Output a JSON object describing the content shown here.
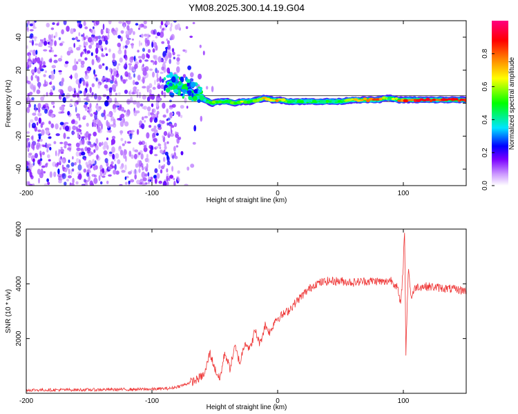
{
  "chart_data": [
    {
      "type": "heatmap",
      "title": "YM08.2025.300.14.19.G04",
      "xlabel": "Height of straight line (km)",
      "ylabel": "Frequency (Hz)",
      "xlim": [
        -200,
        150
      ],
      "ylim": [
        -50,
        50
      ],
      "xticks": [
        -200,
        -100,
        0,
        100
      ],
      "yticks": [
        -40,
        -20,
        0,
        20,
        40
      ],
      "colorbar": {
        "label": "Normalized spectral amplitude",
        "range": [
          0.0,
          1.0
        ],
        "ticks": [
          0.0,
          0.2,
          0.4,
          0.6,
          0.8
        ],
        "colors": [
          "#ffffff",
          "#cc99ff",
          "#7a00ff",
          "#0000ff",
          "#00e5ff",
          "#00ff00",
          "#ffff00",
          "#ff8000",
          "#ff0000",
          "#ff0080"
        ]
      },
      "noise_region": {
        "x_range": [
          -200,
          -85
        ],
        "amplitude": [
          0.05,
          0.25
        ]
      },
      "signal_ridge": {
        "x": [
          -88,
          -82,
          -76,
          -70,
          -64,
          -58,
          -52,
          -46,
          -40,
          -34,
          -28,
          -22,
          -16,
          -10,
          -4,
          0,
          10,
          20,
          30,
          40,
          50,
          60,
          70,
          80,
          86,
          90,
          96,
          100,
          110,
          120,
          130,
          150
        ],
        "freq": [
          11,
          11,
          10,
          8,
          5,
          2,
          0,
          1,
          1,
          0,
          1,
          1,
          2,
          3,
          2,
          2,
          1,
          1,
          1,
          1,
          1,
          2,
          2,
          2,
          3,
          3,
          2,
          2,
          2,
          2,
          2,
          2
        ],
        "amplitude": [
          0.3,
          0.45,
          0.5,
          0.45,
          0.4,
          0.4,
          0.5,
          0.55,
          0.5,
          0.55,
          0.6,
          0.55,
          0.6,
          0.7,
          0.65,
          0.75,
          0.5,
          0.45,
          0.45,
          0.45,
          0.45,
          0.6,
          0.8,
          0.8,
          0.55,
          0.5,
          0.75,
          0.8,
          0.85,
          0.85,
          0.85,
          0.85
        ]
      },
      "horizontal_lines_hz": [
        1.0,
        4.5
      ]
    },
    {
      "type": "line",
      "xlabel": "Height of straight line (km)",
      "ylabel": "SNR (10 * v/v)",
      "xlim": [
        -200,
        150
      ],
      "ylim": [
        0,
        6000
      ],
      "xticks": [
        -200,
        -100,
        0,
        100
      ],
      "yticks": [
        2000,
        4000,
        6000
      ],
      "series": [
        {
          "name": "SNR",
          "color": "#ee3333",
          "x": [
            -200,
            -150,
            -100,
            -85,
            -75,
            -65,
            -58,
            -54,
            -50,
            -46,
            -42,
            -38,
            -34,
            -30,
            -26,
            -22,
            -18,
            -14,
            -10,
            -6,
            -2,
            2,
            8,
            14,
            20,
            26,
            30,
            40,
            50,
            60,
            70,
            80,
            85,
            90,
            95,
            98,
            100,
            101,
            102,
            104,
            106,
            110,
            120,
            130,
            140,
            150
          ],
          "y": [
            120,
            130,
            150,
            180,
            300,
            480,
            700,
            1500,
            900,
            500,
            1500,
            900,
            1700,
            1100,
            1900,
            1600,
            2300,
            1800,
            2500,
            2200,
            2700,
            2800,
            3000,
            3300,
            3600,
            3850,
            4000,
            4100,
            4100,
            4050,
            4100,
            4100,
            4050,
            4150,
            3900,
            3200,
            4800,
            6000,
            1400,
            4700,
            3500,
            3900,
            3900,
            3850,
            3800,
            3750
          ],
          "noise": 160
        }
      ]
    }
  ]
}
